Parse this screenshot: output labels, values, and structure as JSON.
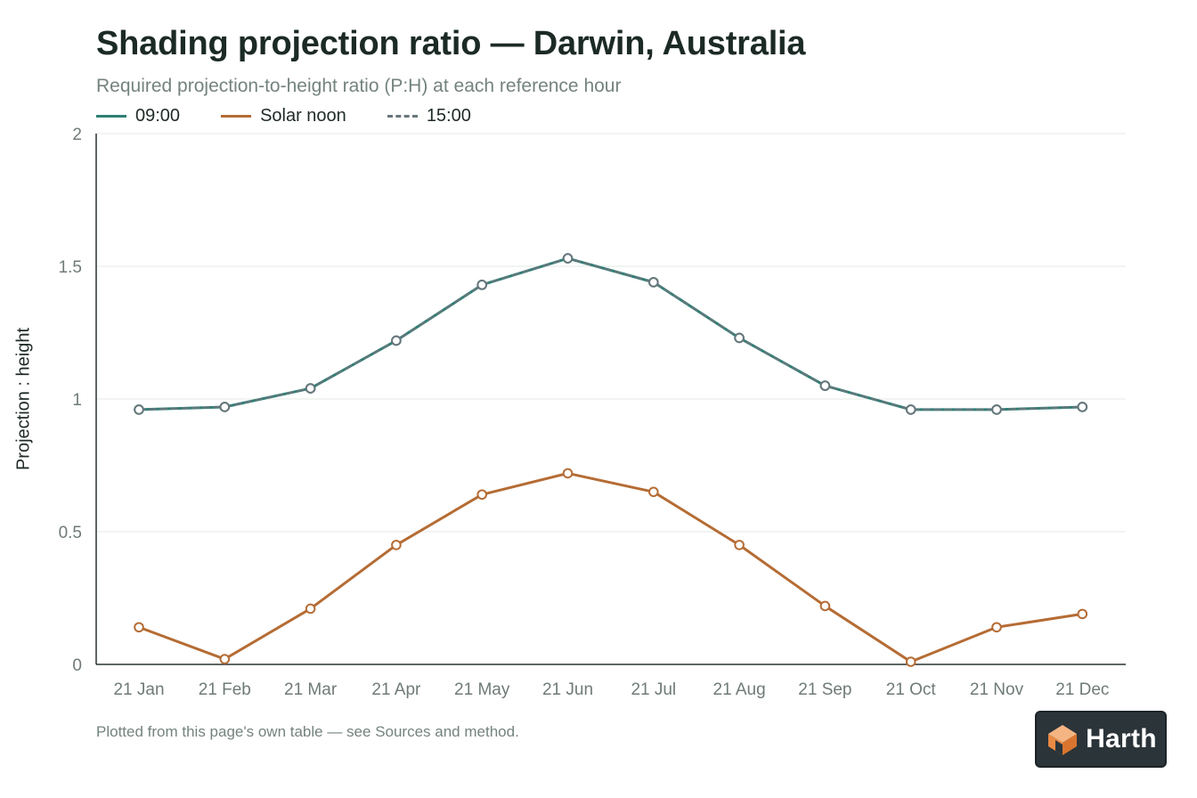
{
  "page": {
    "title": "Shading projection ratio — Darwin, Australia",
    "subtitle": "Required projection-to-height ratio (P:H) at each reference hour",
    "footnote": "Plotted from this page's own table — see Sources and method.",
    "logo_text": "Harth"
  },
  "chart_data": {
    "type": "line",
    "title": "Shading projection ratio — Darwin, Australia",
    "subtitle": "Required projection-to-height ratio (P:H) at each reference hour",
    "xlabel": "",
    "ylabel": "Projection : height",
    "ylim": [
      0,
      2
    ],
    "yticks": [
      "0",
      "0.5",
      "1",
      "1.5",
      "2"
    ],
    "ytick_values": [
      0,
      0.5,
      1,
      1.5,
      2
    ],
    "grid": true,
    "legend_position": "top-left",
    "categories": [
      "21 Jan",
      "21 Feb",
      "21 Mar",
      "21 Apr",
      "21 May",
      "21 Jun",
      "21 Jul",
      "21 Aug",
      "21 Sep",
      "21 Oct",
      "21 Nov",
      "21 Dec"
    ],
    "series": [
      {
        "name": "09:00",
        "color": "#2e7f75",
        "dash": "solid",
        "values": [
          0.96,
          0.97,
          1.04,
          1.22,
          1.43,
          1.53,
          1.44,
          1.23,
          1.05,
          0.96,
          0.96,
          0.97
        ]
      },
      {
        "name": "Solar noon",
        "color": "#b56c34",
        "dash": "solid",
        "values": [
          0.14,
          0.02,
          0.21,
          0.45,
          0.64,
          0.72,
          0.65,
          0.45,
          0.22,
          0.01,
          0.14,
          0.19
        ]
      },
      {
        "name": "15:00",
        "color": "#67767b",
        "dash": "dashed",
        "values": [
          0.96,
          0.97,
          1.04,
          1.22,
          1.43,
          1.53,
          1.44,
          1.23,
          1.05,
          0.96,
          0.96,
          0.97
        ]
      }
    ]
  }
}
